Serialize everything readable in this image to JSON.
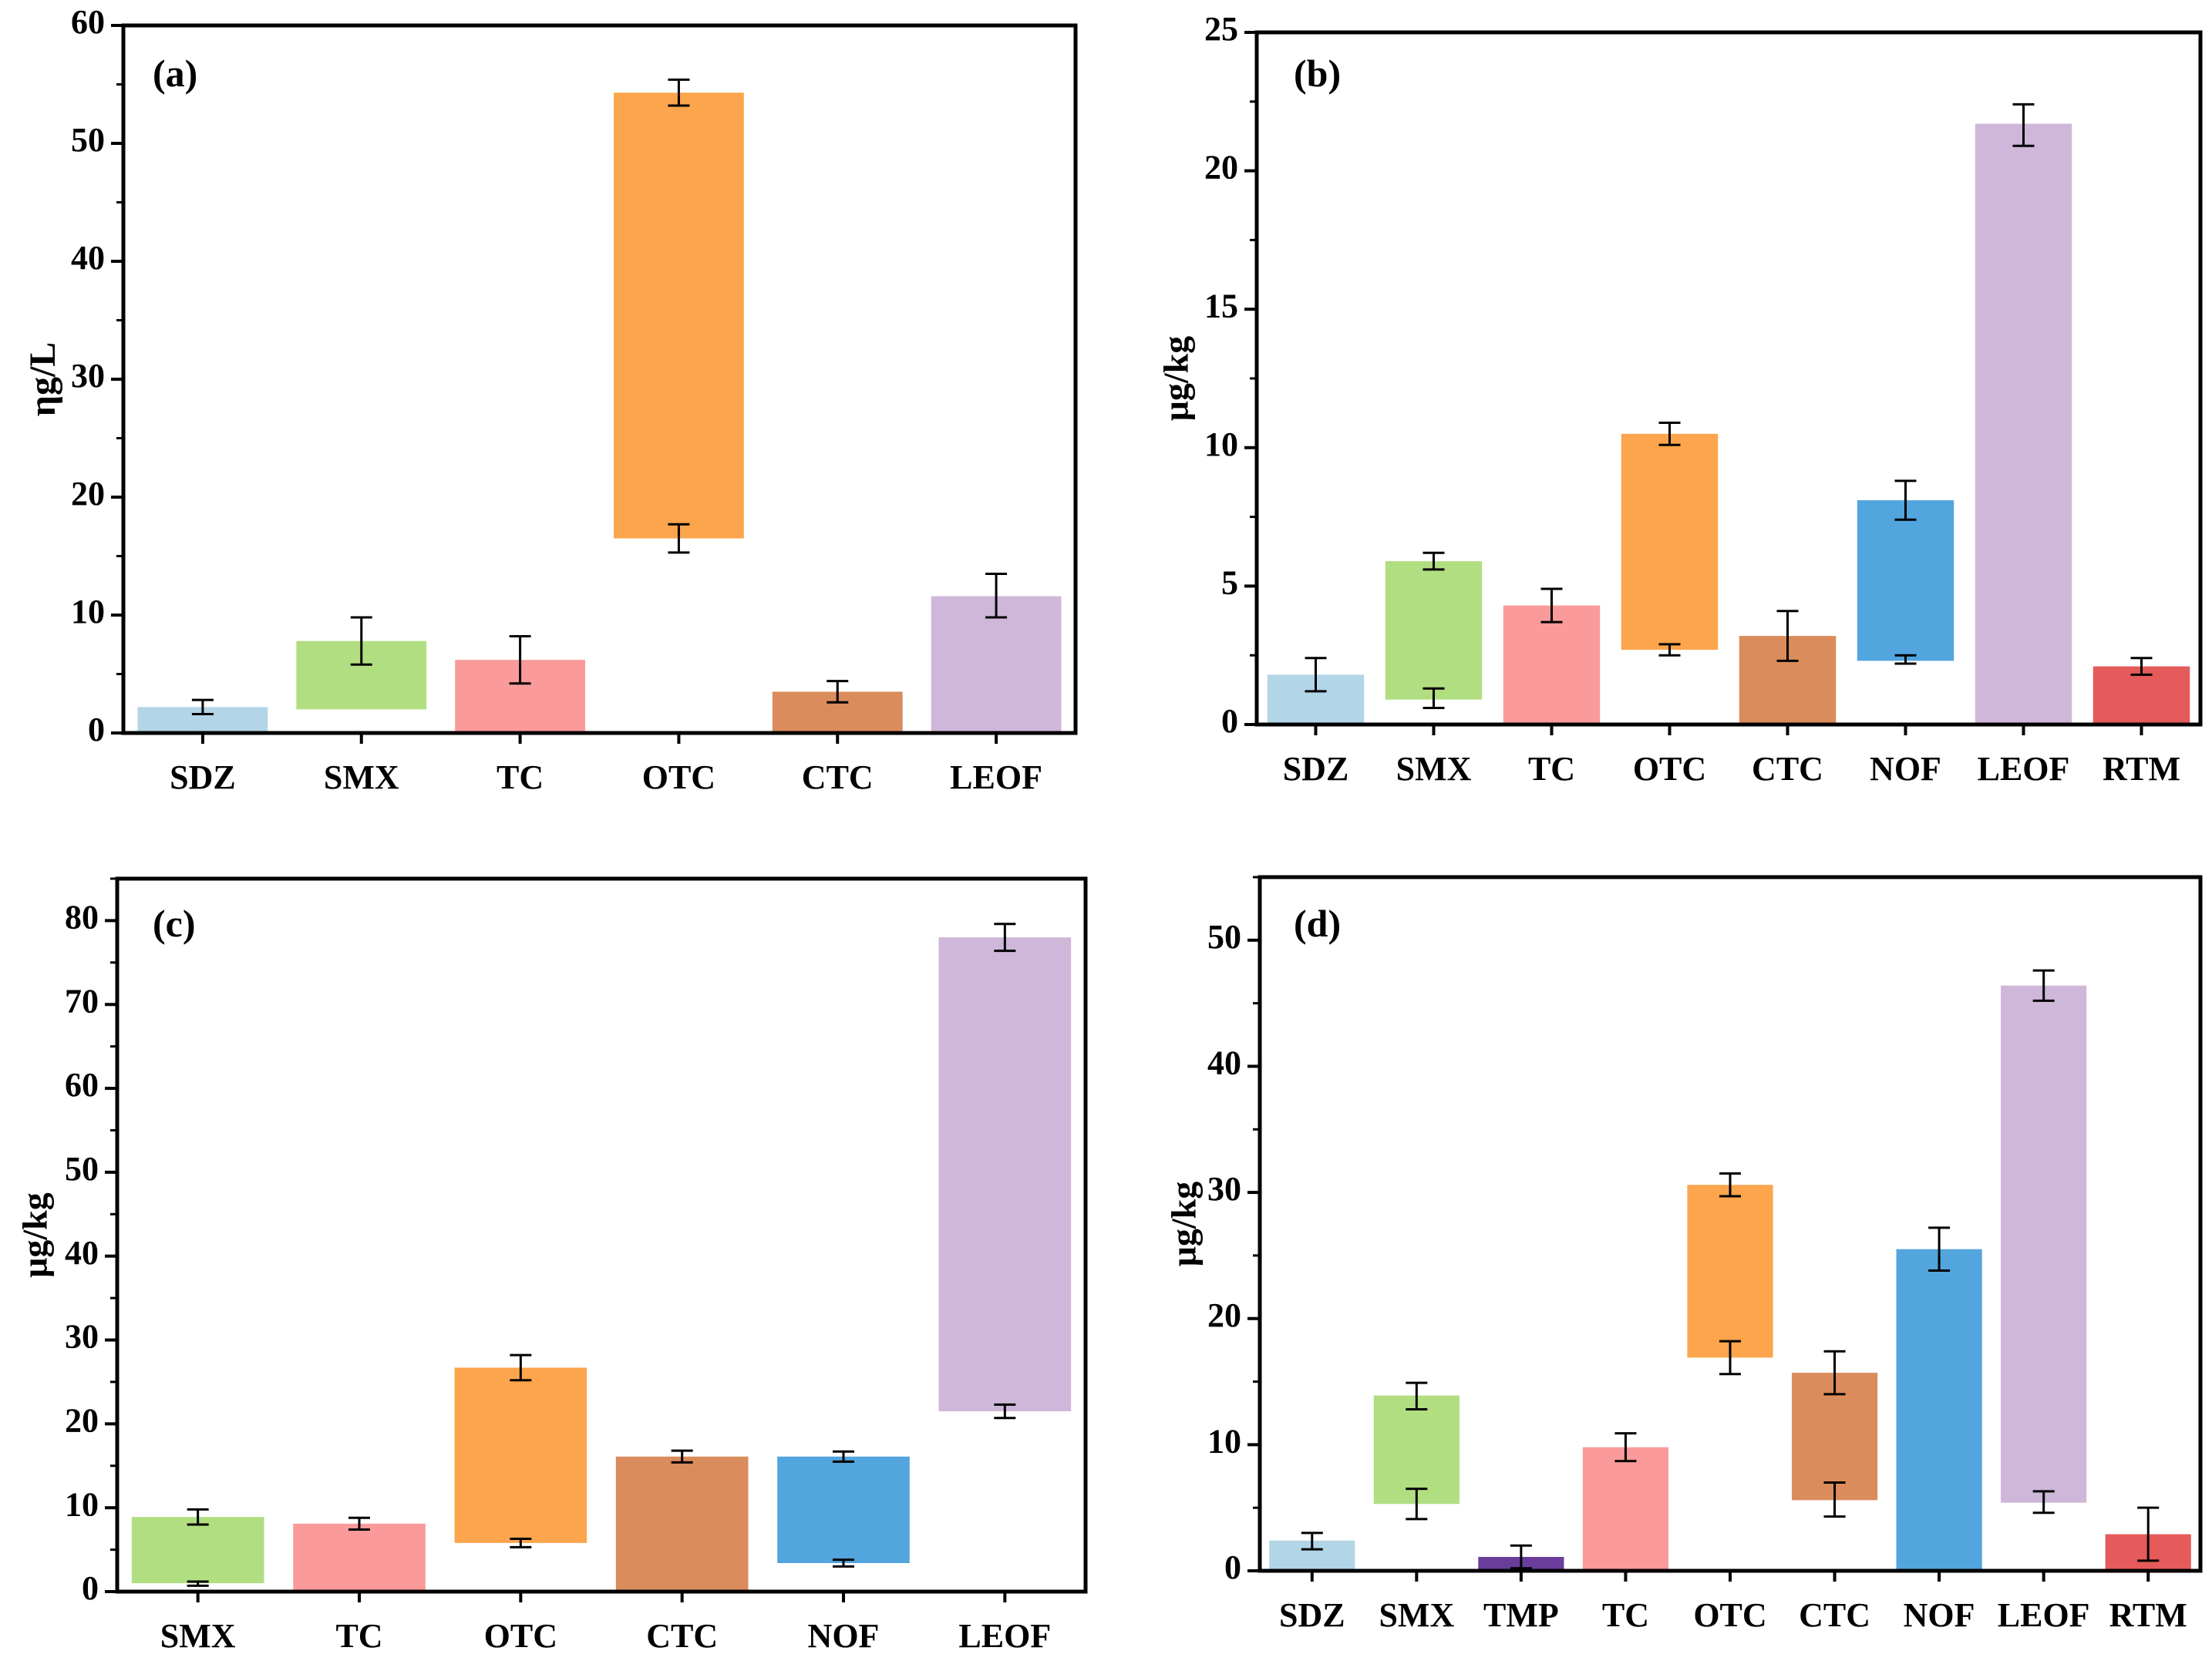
{
  "chart_data": [
    {
      "panel": "a",
      "type": "bar",
      "panel_label": "(a)",
      "ylabel": "ηg/L",
      "ylim": [
        0,
        60
      ],
      "yticks": [
        "0",
        "10",
        "20",
        "30",
        "40",
        "50",
        "60"
      ],
      "ytick_values": [
        0,
        10,
        20,
        30,
        40,
        50,
        60
      ],
      "minor_step": 5,
      "categories": [
        "SDZ",
        "SMX",
        "TC",
        "OTC",
        "CTC",
        "LEOF"
      ],
      "colors": [
        "#b3d5e8",
        "#b2de82",
        "#fb9a9a",
        "#fca54c",
        "#db8c5c",
        "#cfb7da"
      ],
      "ranges": [
        [
          0,
          2.2
        ],
        [
          2.0,
          7.8
        ],
        [
          0,
          6.2
        ],
        [
          16.5,
          54.3
        ],
        [
          0,
          3.5
        ],
        [
          0,
          11.6
        ]
      ],
      "error_bars": [
        {
          "at": 2.2,
          "low": 1.6,
          "high": 2.8
        },
        {
          "at": 7.8,
          "low": 5.8,
          "high": 9.8
        },
        {
          "at": 6.2,
          "low": 4.2,
          "high": 8.2
        },
        {
          "at": 54.3,
          "low": 53.2,
          "high": 55.4
        },
        {
          "at": 16.5,
          "low": 15.3,
          "high": 17.7
        },
        {
          "at": 3.5,
          "low": 2.6,
          "high": 4.4
        },
        {
          "at": 11.6,
          "low": 9.8,
          "high": 13.5
        }
      ]
    },
    {
      "panel": "b",
      "type": "bar",
      "panel_label": "(b)",
      "ylabel": "μg/kg",
      "ylim": [
        0,
        25
      ],
      "yticks": [
        "0",
        "5",
        "10",
        "15",
        "20",
        "25"
      ],
      "ytick_values": [
        0,
        5,
        10,
        15,
        20,
        25
      ],
      "minor_step": 2.5,
      "categories": [
        "SDZ",
        "SMX",
        "TC",
        "OTC",
        "CTC",
        "NOF",
        "LEOF",
        "RTM"
      ],
      "colors": [
        "#b3d5e8",
        "#b2de82",
        "#fb9a9a",
        "#fca54c",
        "#db8c5c",
        "#53a5de",
        "#cfb7da",
        "#e55a5a"
      ],
      "ranges": [
        [
          0,
          1.8
        ],
        [
          0.9,
          5.9
        ],
        [
          0,
          4.3
        ],
        [
          2.7,
          10.5
        ],
        [
          0,
          3.2
        ],
        [
          2.3,
          8.1
        ],
        [
          0,
          21.7
        ],
        [
          0,
          2.1
        ]
      ],
      "error_bars": [
        {
          "at": 1.8,
          "low": 1.2,
          "high": 2.4
        },
        {
          "at": 5.9,
          "low": 5.6,
          "high": 6.2
        },
        {
          "at": 0.9,
          "low": 0.6,
          "high": 1.3
        },
        {
          "at": 4.3,
          "low": 3.7,
          "high": 4.9
        },
        {
          "at": 10.5,
          "low": 10.1,
          "high": 10.9
        },
        {
          "at": 2.7,
          "low": 2.5,
          "high": 2.9
        },
        {
          "at": 3.2,
          "low": 2.3,
          "high": 4.1
        },
        {
          "at": 8.1,
          "low": 7.4,
          "high": 8.8
        },
        {
          "at": 2.3,
          "low": 2.2,
          "high": 2.5
        },
        {
          "at": 21.7,
          "low": 20.9,
          "high": 22.4
        },
        {
          "at": 2.1,
          "low": 1.8,
          "high": 2.4
        }
      ]
    },
    {
      "panel": "c",
      "type": "bar",
      "panel_label": "(c)",
      "ylabel": "μg/kg",
      "ylim": [
        0,
        85
      ],
      "yticks": [
        "0",
        "10",
        "20",
        "30",
        "40",
        "50",
        "60",
        "70",
        "80"
      ],
      "ytick_values": [
        0,
        10,
        20,
        30,
        40,
        50,
        60,
        70,
        80
      ],
      "minor_step": 5,
      "categories": [
        "SMX",
        "TC",
        "OTC",
        "CTC",
        "NOF",
        "LEOF"
      ],
      "colors": [
        "#b2de82",
        "#fb9a9a",
        "#fca54c",
        "#db8c5c",
        "#53a5de",
        "#cfb7da"
      ],
      "ranges": [
        [
          1.0,
          8.9
        ],
        [
          0,
          8.1
        ],
        [
          5.8,
          26.7
        ],
        [
          0,
          16.1
        ],
        [
          3.4,
          16.1
        ],
        [
          21.5,
          78.0
        ]
      ],
      "error_bars": [
        {
          "at": 8.9,
          "low": 8.0,
          "high": 9.8
        },
        {
          "at": 1.0,
          "low": 0.7,
          "high": 1.2
        },
        {
          "at": 8.1,
          "low": 7.4,
          "high": 8.8
        },
        {
          "at": 26.7,
          "low": 25.2,
          "high": 28.2
        },
        {
          "at": 5.8,
          "low": 5.3,
          "high": 6.3
        },
        {
          "at": 16.1,
          "low": 15.4,
          "high": 16.8
        },
        {
          "at": 16.1,
          "low": 15.5,
          "high": 16.7
        },
        {
          "at": 3.4,
          "low": 3.0,
          "high": 3.8
        },
        {
          "at": 78.0,
          "low": 76.4,
          "high": 79.6
        },
        {
          "at": 21.5,
          "low": 20.7,
          "high": 22.3
        }
      ]
    },
    {
      "panel": "d",
      "type": "bar",
      "panel_label": "(d)",
      "ylabel": "μg/kg",
      "ylim": [
        0,
        55
      ],
      "yticks": [
        "0",
        "10",
        "20",
        "30",
        "40",
        "50"
      ],
      "ytick_values": [
        0,
        10,
        20,
        30,
        40,
        50
      ],
      "minor_step": 5,
      "categories": [
        "SDZ",
        "SMX",
        "TMP",
        "TC",
        "OTC",
        "CTC",
        "NOF",
        "LEOF",
        "RTM"
      ],
      "colors": [
        "#b3d5e8",
        "#b2de82",
        "#6a3d9a",
        "#fb9a9a",
        "#fca54c",
        "#db8c5c",
        "#53a5de",
        "#cfb7da",
        "#e55a5a"
      ],
      "ranges": [
        [
          0,
          2.4
        ],
        [
          5.3,
          13.9
        ],
        [
          0,
          1.1
        ],
        [
          0,
          9.8
        ],
        [
          16.9,
          30.6
        ],
        [
          5.6,
          15.7
        ],
        [
          0,
          25.5
        ],
        [
          5.4,
          46.4
        ],
        [
          0,
          2.9
        ]
      ],
      "error_bars": [
        {
          "at": 2.4,
          "low": 1.7,
          "high": 3.0
        },
        {
          "at": 13.9,
          "low": 12.8,
          "high": 14.9
        },
        {
          "at": 5.3,
          "low": 4.1,
          "high": 6.5
        },
        {
          "at": 1.1,
          "low": 0.2,
          "high": 2.0
        },
        {
          "at": 9.8,
          "low": 8.7,
          "high": 10.9
        },
        {
          "at": 30.6,
          "low": 29.7,
          "high": 31.5
        },
        {
          "at": 16.9,
          "low": 15.6,
          "high": 18.2
        },
        {
          "at": 15.7,
          "low": 14.0,
          "high": 17.4
        },
        {
          "at": 5.6,
          "low": 4.3,
          "high": 7.0
        },
        {
          "at": 25.5,
          "low": 23.8,
          "high": 27.2
        },
        {
          "at": 46.4,
          "low": 45.2,
          "high": 47.6
        },
        {
          "at": 5.4,
          "low": 4.6,
          "high": 6.3
        },
        {
          "at": 2.9,
          "low": 0.8,
          "high": 5.0
        }
      ]
    }
  ]
}
